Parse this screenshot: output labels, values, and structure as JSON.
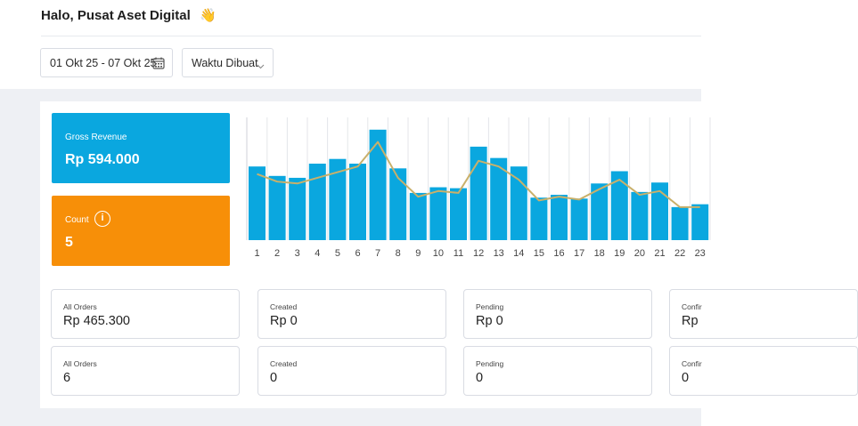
{
  "header": {
    "greeting": "Halo, Pusat Aset Digital",
    "wave_emoji": "👋"
  },
  "filters": {
    "date_range": "01 Okt 25 - 07 Okt 25",
    "sort_select": "Waktu Dibuat"
  },
  "stats": {
    "revenue": {
      "label": "Gross Revenue",
      "value": "Rp 594.000",
      "color": "#0aa7df"
    },
    "count": {
      "label": "Count",
      "value": "5",
      "color": "#f78f08"
    }
  },
  "chart_data": {
    "type": "bar",
    "categories": [
      "1",
      "2",
      "3",
      "4",
      "5",
      "6",
      "7",
      "8",
      "9",
      "10",
      "11",
      "12",
      "13",
      "14",
      "15",
      "16",
      "17",
      "18",
      "19",
      "20",
      "21",
      "22",
      "23"
    ],
    "series": [
      {
        "type": "bar",
        "color": "#0aa7df",
        "values": [
          78,
          68,
          66,
          81,
          86,
          81,
          117,
          76,
          50,
          56,
          55,
          99,
          87,
          78,
          45,
          48,
          44,
          60,
          73,
          51,
          61,
          35,
          38
        ]
      },
      {
        "type": "line",
        "color": "#c9b06a",
        "values": [
          70,
          62,
          60,
          66,
          72,
          78,
          104,
          66,
          46,
          52,
          50,
          84,
          78,
          64,
          42,
          46,
          43,
          54,
          64,
          48,
          52,
          35,
          35
        ]
      }
    ],
    "ylim": [
      0,
      130
    ],
    "grid": true
  },
  "orders": [
    [
      {
        "title": "All Orders",
        "value": "Rp 465.300"
      },
      {
        "title": "Created",
        "value": "Rp 0"
      },
      {
        "title": "Pending",
        "value": "Rp 0"
      },
      {
        "title": "Confir",
        "value": "Rp"
      }
    ],
    [
      {
        "title": "All Orders",
        "value": "6"
      },
      {
        "title": "Created",
        "value": "0"
      },
      {
        "title": "Pending",
        "value": "0"
      },
      {
        "title": "Confir",
        "value": "0"
      }
    ]
  ]
}
